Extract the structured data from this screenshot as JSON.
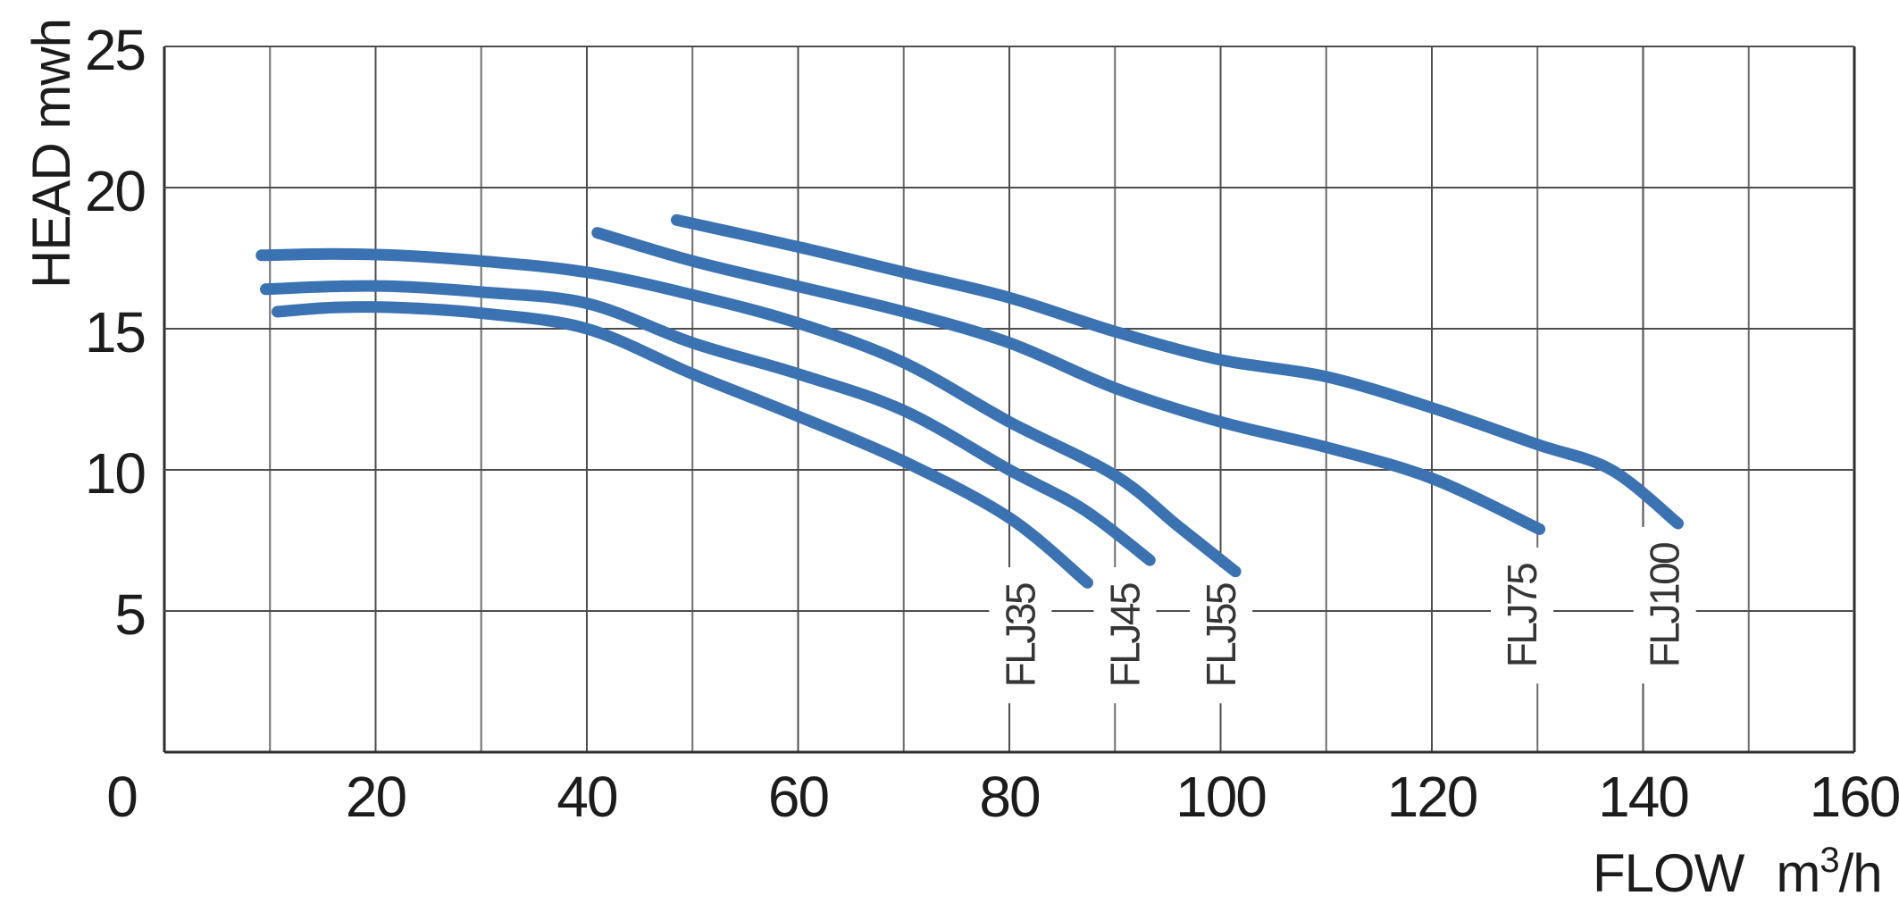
{
  "chart_data": {
    "type": "line",
    "title": "",
    "ylabel": "HEAD mwh",
    "xlabel": {
      "word1": "FLOW",
      "unit_base": "m",
      "unit_sup": "3",
      "unit_end": "/h"
    },
    "xlim": [
      0,
      160
    ],
    "ylim": [
      0,
      25
    ],
    "x_grid_step": 10,
    "y_grid_step": 5,
    "x_tick_labels": [
      "0",
      "20",
      "40",
      "60",
      "80",
      "100",
      "120",
      "140",
      "160"
    ],
    "x_tick_values": [
      0,
      20,
      40,
      60,
      80,
      100,
      120,
      140,
      160
    ],
    "y_tick_labels": [
      "5",
      "10",
      "15",
      "20",
      "25"
    ],
    "y_tick_values": [
      5,
      10,
      15,
      20,
      25
    ],
    "grid": true,
    "legend_position": "none",
    "line_color": "#3b72b2",
    "grid_color": "#6e6e6e",
    "grid_major_color": "#4d4d4d",
    "axis_color": "#2e2e2e",
    "series": [
      {
        "name": "FLJ35",
        "points": [
          [
            10.7,
            15.6
          ],
          [
            16,
            15.75
          ],
          [
            22,
            15.75
          ],
          [
            30,
            15.55
          ],
          [
            40,
            15.0
          ],
          [
            50,
            13.4
          ],
          [
            60,
            11.9
          ],
          [
            70,
            10.3
          ],
          [
            80,
            8.3
          ],
          [
            87.4,
            6.0
          ]
        ],
        "label_flow": 83.5,
        "label_bottom_head": 2.3
      },
      {
        "name": "FLJ45",
        "points": [
          [
            9.6,
            16.4
          ],
          [
            16,
            16.5
          ],
          [
            22,
            16.5
          ],
          [
            30,
            16.3
          ],
          [
            40,
            15.9
          ],
          [
            50,
            14.5
          ],
          [
            60,
            13.4
          ],
          [
            70,
            12.1
          ],
          [
            80,
            10.0
          ],
          [
            87,
            8.6
          ],
          [
            93.3,
            6.8
          ]
        ],
        "label_flow": 93.4,
        "label_bottom_head": 2.3
      },
      {
        "name": "FLJ55",
        "points": [
          [
            9.2,
            17.6
          ],
          [
            16,
            17.65
          ],
          [
            22,
            17.6
          ],
          [
            30,
            17.4
          ],
          [
            40,
            17.0
          ],
          [
            50,
            16.2
          ],
          [
            60,
            15.2
          ],
          [
            70,
            13.8
          ],
          [
            80,
            11.7
          ],
          [
            90,
            9.8
          ],
          [
            96,
            8.0
          ],
          [
            101.4,
            6.4
          ]
        ],
        "label_flow": 102.5,
        "label_bottom_head": 2.3
      },
      {
        "name": "FLJ75",
        "points": [
          [
            41,
            18.4
          ],
          [
            50,
            17.4
          ],
          [
            60,
            16.5
          ],
          [
            70,
            15.6
          ],
          [
            80,
            14.5
          ],
          [
            90,
            12.9
          ],
          [
            100,
            11.7
          ],
          [
            110,
            10.8
          ],
          [
            120,
            9.7
          ],
          [
            130.2,
            7.9
          ]
        ],
        "label_flow": 131,
        "label_bottom_head": 3.0
      },
      {
        "name": "FLJ100",
        "points": [
          [
            48.5,
            18.85
          ],
          [
            60,
            17.9
          ],
          [
            70,
            17.0
          ],
          [
            80,
            16.1
          ],
          [
            90,
            14.9
          ],
          [
            100,
            13.9
          ],
          [
            110,
            13.3
          ],
          [
            120,
            12.2
          ],
          [
            130,
            10.9
          ],
          [
            137,
            10.0
          ],
          [
            143.3,
            8.1
          ]
        ],
        "label_flow": 144.5,
        "label_bottom_head": 3.0
      }
    ]
  }
}
